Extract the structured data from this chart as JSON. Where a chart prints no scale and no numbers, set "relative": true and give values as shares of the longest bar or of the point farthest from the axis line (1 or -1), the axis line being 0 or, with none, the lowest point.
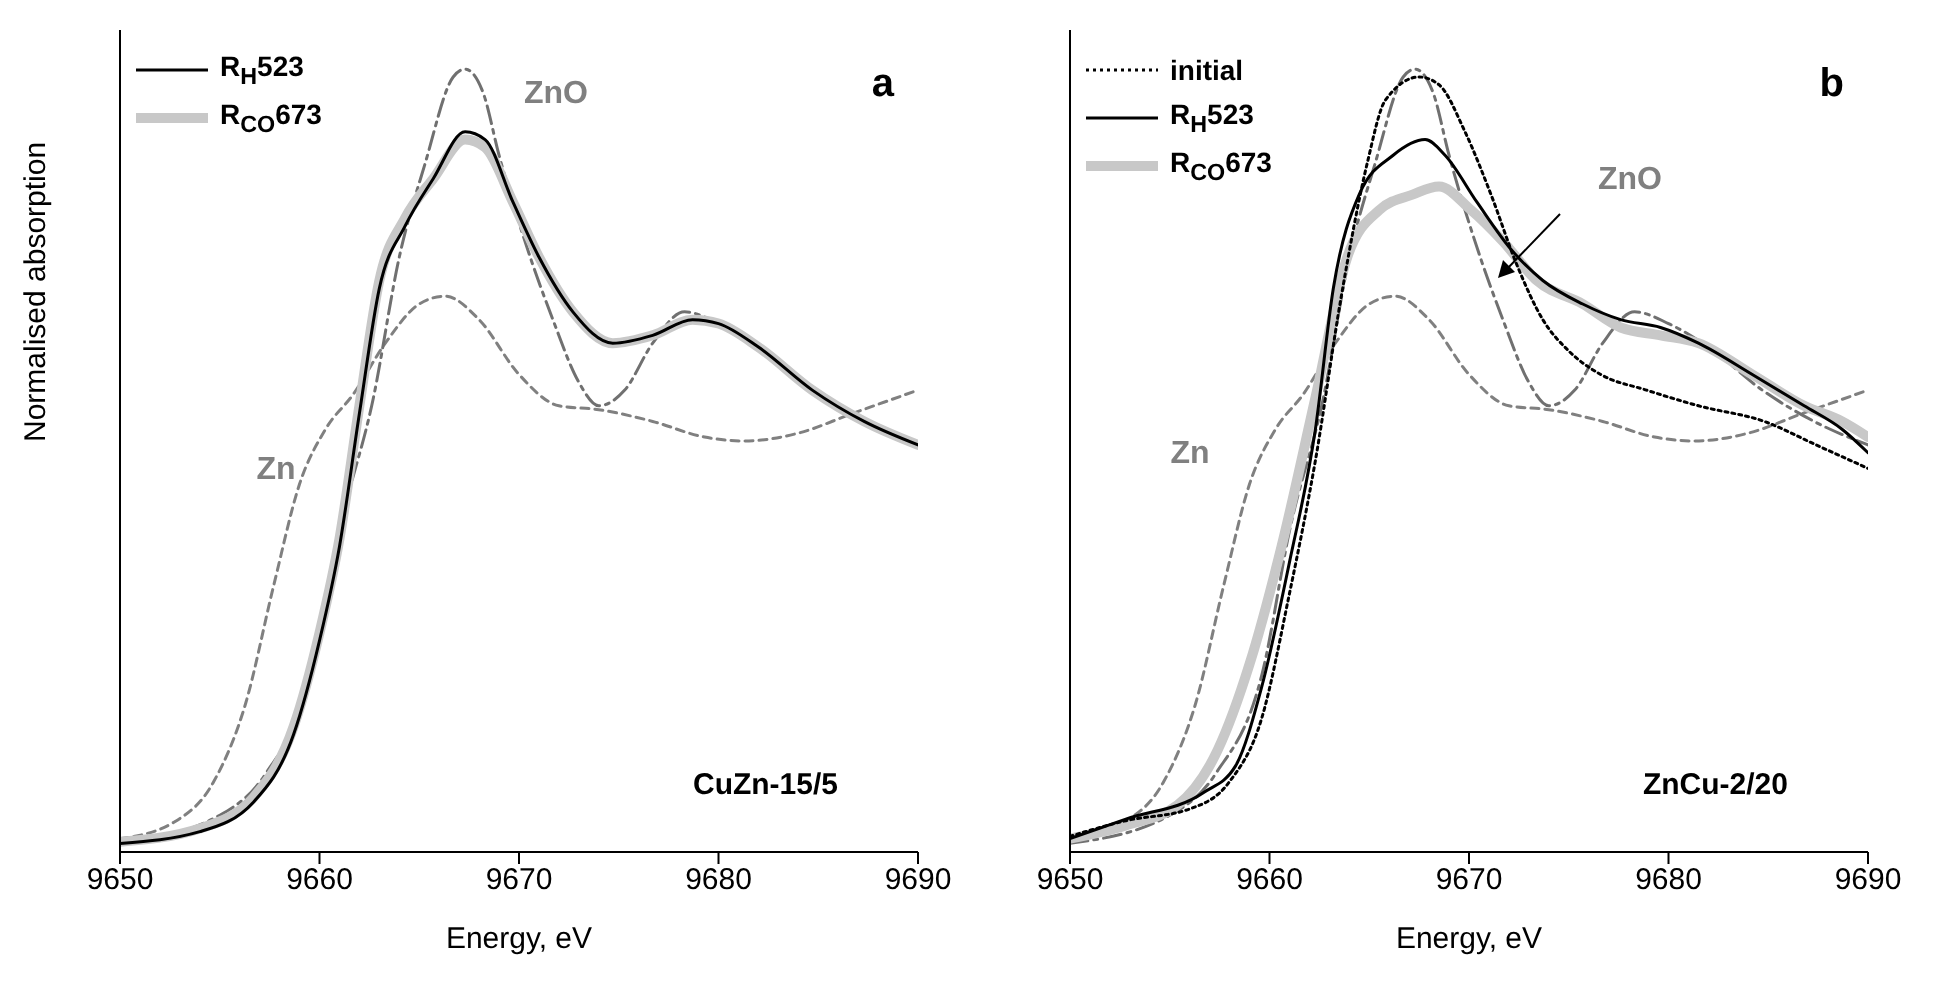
{
  "chart_data": [
    {
      "type": "line",
      "relative": true,
      "xlabel": "Energy, eV",
      "ylabel": "Normalised absorption",
      "xlim": [
        9650,
        9690
      ],
      "xticks": [
        9650,
        9660,
        9670,
        9680,
        9690
      ],
      "legend": "top left",
      "annotations": [
        "a",
        "CuZn-15/5",
        "Zn",
        "ZnO"
      ],
      "series": [
        {
          "name": "R$_{H}$523",
          "color": "#000000",
          "line_style": "solid",
          "x": [
            9650,
            9654,
            9656.7,
            9658.7,
            9660,
            9661,
            9662,
            9663,
            9664.3,
            9665.7,
            9667.3,
            9668.3,
            9669.7,
            9671,
            9672.7,
            9674.7,
            9676.7,
            9678.7,
            9680,
            9682,
            9684.7,
            9687.3,
            9690
          ],
          "values": [
            0.011,
            0.026,
            0.064,
            0.15,
            0.27,
            0.39,
            0.56,
            0.72,
            0.8,
            0.86,
            0.92,
            0.91,
            0.83,
            0.76,
            0.69,
            0.65,
            0.66,
            0.68,
            0.675,
            0.645,
            0.59,
            0.55,
            0.52
          ]
        },
        {
          "name": "R$_{CO}$673",
          "color": "#c8c8c8",
          "line_style": "solid",
          "x": [
            9650,
            9654,
            9656.7,
            9658.7,
            9660,
            9661,
            9662,
            9663,
            9664.3,
            9665.7,
            9667.3,
            9668.3,
            9669.7,
            9671,
            9672.7,
            9674.7,
            9676.7,
            9678.7,
            9680,
            9682,
            9684.7,
            9687.3,
            9690
          ],
          "values": [
            0.013,
            0.03,
            0.07,
            0.16,
            0.28,
            0.4,
            0.57,
            0.73,
            0.81,
            0.86,
            0.91,
            0.9,
            0.83,
            0.76,
            0.69,
            0.65,
            0.66,
            0.68,
            0.675,
            0.645,
            0.59,
            0.55,
            0.52
          ]
        },
        {
          "color": "#707070",
          "line_style": "dashdot",
          "x": [
            9650,
            9655,
            9657.3,
            9659.7,
            9661,
            9662.7,
            9664,
            9665.3,
            9666.7,
            9667.3,
            9668.2,
            9669,
            9670.3,
            9671.7,
            9673,
            9674,
            9675.3,
            9676.7,
            9678.3,
            9680,
            9682,
            9684.7,
            9687.3,
            9690
          ],
          "values": [
            0.011,
            0.047,
            0.1,
            0.235,
            0.41,
            0.58,
            0.76,
            0.88,
            0.99,
            1,
            0.97,
            0.89,
            0.78,
            0.68,
            0.6,
            0.57,
            0.59,
            0.65,
            0.69,
            0.675,
            0.645,
            0.59,
            0.55,
            0.52
          ]
        },
        {
          "color": "#808080",
          "line_style": "dashed",
          "x": [
            9650,
            9652.7,
            9654.7,
            9656.3,
            9657.7,
            9659,
            9660.3,
            9661.7,
            9663.3,
            9665,
            9666.3,
            9668,
            9670,
            9672,
            9674,
            9676.7,
            9679.3,
            9681.3,
            9684,
            9686.7,
            9690
          ],
          "values": [
            0.017,
            0.038,
            0.09,
            0.19,
            0.34,
            0.47,
            0.54,
            0.585,
            0.65,
            0.7,
            0.71,
            0.68,
            0.61,
            0.57,
            0.565,
            0.55,
            0.53,
            0.525,
            0.535,
            0.56,
            0.59
          ]
        }
      ]
    },
    {
      "type": "line",
      "relative": true,
      "xlabel": "Energy, eV",
      "xlim": [
        9650,
        9690
      ],
      "xticks": [
        9650,
        9660,
        9670,
        9680,
        9690
      ],
      "legend": "top left",
      "annotations": [
        "b",
        "ZnCu-2/20",
        "Zn",
        "ZnO"
      ],
      "series": [
        {
          "name": "initial",
          "color": "#000000",
          "line_style": "dotted",
          "x": [
            9650,
            9652.8,
            9656,
            9658,
            9659.6,
            9661,
            9662.3,
            9663.6,
            9664.9,
            9665.8,
            9667.5,
            9668.5,
            9669.8,
            9671.1,
            9672.4,
            9673.7,
            9675,
            9676.6,
            9678.9,
            9681.5,
            9684.8,
            9687.4,
            9690
          ],
          "values": [
            0.02,
            0.04,
            0.055,
            0.09,
            0.17,
            0.33,
            0.5,
            0.71,
            0.88,
            0.96,
            0.99,
            0.98,
            0.92,
            0.84,
            0.75,
            0.68,
            0.64,
            0.61,
            0.59,
            0.57,
            0.55,
            0.52,
            0.49
          ]
        },
        {
          "name": "R$_{H}$523",
          "color": "#000000",
          "line_style": "solid",
          "x": [
            9650,
            9652.8,
            9656.7,
            9658.3,
            9659.6,
            9661,
            9662.3,
            9663.2,
            9664.5,
            9666.2,
            9667.8,
            9668.8,
            9670.4,
            9672.1,
            9673.7,
            9675.7,
            9677.6,
            9679.6,
            9681.5,
            9684.2,
            9686.8,
            9688.7,
            9690
          ],
          "values": [
            0.017,
            0.042,
            0.076,
            0.11,
            0.21,
            0.37,
            0.54,
            0.72,
            0.84,
            0.89,
            0.91,
            0.89,
            0.83,
            0.77,
            0.73,
            0.7,
            0.68,
            0.67,
            0.65,
            0.61,
            0.57,
            0.54,
            0.51
          ]
        },
        {
          "name": "R$_{CO}$673",
          "color": "#c8c8c8",
          "line_style": "solid",
          "x": [
            9650,
            9652.8,
            9655.4,
            9657.4,
            9659,
            9660.6,
            9662.3,
            9663.9,
            9665.5,
            9667.2,
            9668.5,
            9670.1,
            9671.7,
            9673.4,
            9675.7,
            9677.6,
            9679.6,
            9681.5,
            9684.2,
            9686.8,
            9688.7,
            9690
          ],
          "values": [
            0.017,
            0.034,
            0.06,
            0.13,
            0.24,
            0.39,
            0.58,
            0.76,
            0.82,
            0.84,
            0.85,
            0.82,
            0.78,
            0.73,
            0.7,
            0.67,
            0.66,
            0.65,
            0.61,
            0.57,
            0.55,
            0.53
          ]
        },
        {
          "color": "#707070",
          "line_style": "dashdot",
          "x": [
            9650,
            9655,
            9657.3,
            9659.7,
            9661,
            9662.7,
            9664,
            9665.3,
            9666.7,
            9667.3,
            9668.2,
            9669,
            9670.3,
            9671.7,
            9673,
            9674,
            9675.3,
            9676.7,
            9678.3,
            9680,
            9682,
            9684.7,
            9687.3,
            9690
          ],
          "values": [
            0.011,
            0.047,
            0.1,
            0.235,
            0.41,
            0.58,
            0.76,
            0.88,
            0.99,
            1,
            0.97,
            0.89,
            0.78,
            0.68,
            0.6,
            0.57,
            0.59,
            0.65,
            0.69,
            0.675,
            0.645,
            0.59,
            0.55,
            0.52
          ]
        },
        {
          "color": "#808080",
          "line_style": "dashed",
          "x": [
            9650,
            9652.7,
            9654.7,
            9656.3,
            9657.7,
            9659,
            9660.3,
            9661.7,
            9663.3,
            9665,
            9666.3,
            9668,
            9670,
            9672,
            9674,
            9676.7,
            9679.3,
            9681.3,
            9684,
            9686.7,
            9690
          ],
          "values": [
            0.017,
            0.038,
            0.09,
            0.19,
            0.34,
            0.47,
            0.54,
            0.585,
            0.65,
            0.7,
            0.71,
            0.68,
            0.61,
            0.57,
            0.565,
            0.55,
            0.53,
            0.525,
            0.535,
            0.56,
            0.59
          ]
        }
      ]
    }
  ]
}
